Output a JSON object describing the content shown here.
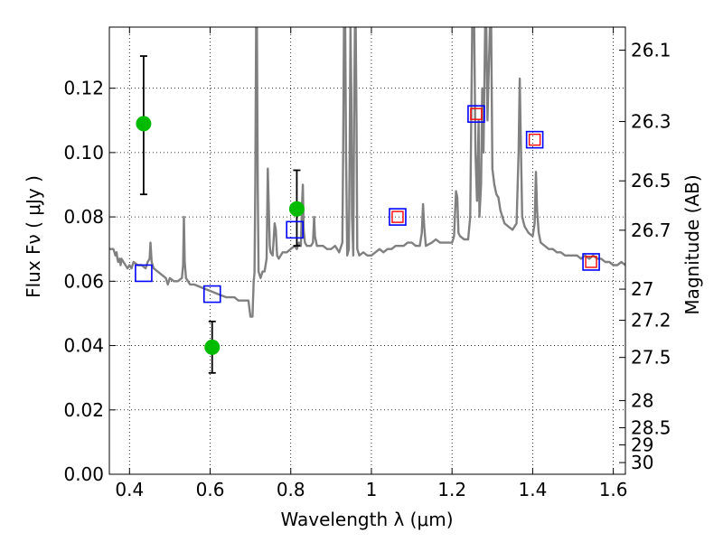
{
  "chart_data": {
    "type": "scatter",
    "xlabel": "Wavelength  λ (μm)",
    "ylabel": "Flux  Fν ( μJy )",
    "ylabel_right": "Magnitude (AB)",
    "xlim": [
      0.35,
      1.63
    ],
    "ylim": [
      0.0,
      0.139
    ],
    "grid": true,
    "x_ticks": [
      0.4,
      0.6,
      0.8,
      1.0,
      1.2,
      1.4,
      1.6
    ],
    "x_tick_labels": [
      "0.4",
      "0.6",
      "0.8",
      "1",
      "1.2",
      "1.4",
      "1.6"
    ],
    "y_ticks": [
      0.0,
      0.02,
      0.04,
      0.06,
      0.08,
      0.1,
      0.12
    ],
    "y_tick_labels": [
      "0.00",
      "0.02",
      "0.04",
      "0.06",
      "0.08",
      "0.10",
      "0.12"
    ],
    "right_ticks": [
      {
        "label": "26.1",
        "value": 26.1
      },
      {
        "label": "26.3",
        "value": 26.3
      },
      {
        "label": "26.5",
        "value": 26.5
      },
      {
        "label": "26.7",
        "value": 26.7
      },
      {
        "label": "27",
        "value": 27.0
      },
      {
        "label": "27.2",
        "value": 27.2
      },
      {
        "label": "27.5",
        "value": 27.5
      },
      {
        "label": "28",
        "value": 28.0
      },
      {
        "label": "28.5",
        "value": 28.5
      },
      {
        "label": "29",
        "value": 29.0
      },
      {
        "label": "30",
        "value": 30.0
      }
    ],
    "series": [
      {
        "kind": "spectrum",
        "color": "#808080",
        "points": [
          [
            0.35,
            0.07
          ],
          [
            0.36,
            0.07
          ],
          [
            0.365,
            0.068
          ],
          [
            0.368,
            0.069
          ],
          [
            0.37,
            0.067
          ],
          [
            0.372,
            0.066
          ],
          [
            0.375,
            0.067
          ],
          [
            0.378,
            0.065
          ],
          [
            0.38,
            0.067
          ],
          [
            0.385,
            0.066
          ],
          [
            0.39,
            0.065
          ],
          [
            0.395,
            0.064
          ],
          [
            0.4,
            0.065
          ],
          [
            0.405,
            0.064
          ],
          [
            0.41,
            0.066
          ],
          [
            0.42,
            0.065
          ],
          [
            0.43,
            0.065
          ],
          [
            0.44,
            0.064
          ],
          [
            0.445,
            0.066
          ],
          [
            0.45,
            0.067
          ],
          [
            0.452,
            0.072
          ],
          [
            0.455,
            0.066
          ],
          [
            0.46,
            0.064
          ],
          [
            0.47,
            0.063
          ],
          [
            0.48,
            0.062
          ],
          [
            0.49,
            0.061
          ],
          [
            0.495,
            0.059
          ],
          [
            0.5,
            0.061
          ],
          [
            0.51,
            0.06
          ],
          [
            0.52,
            0.06
          ],
          [
            0.53,
            0.061
          ],
          [
            0.533,
            0.065
          ],
          [
            0.535,
            0.08
          ],
          [
            0.537,
            0.066
          ],
          [
            0.54,
            0.061
          ],
          [
            0.55,
            0.059
          ],
          [
            0.56,
            0.059
          ],
          [
            0.58,
            0.058
          ],
          [
            0.6,
            0.057
          ],
          [
            0.62,
            0.056
          ],
          [
            0.64,
            0.055
          ],
          [
            0.66,
            0.055
          ],
          [
            0.67,
            0.054
          ],
          [
            0.68,
            0.054
          ],
          [
            0.69,
            0.054
          ],
          [
            0.695,
            0.054
          ],
          [
            0.7,
            0.049
          ],
          [
            0.705,
            0.049
          ],
          [
            0.708,
            0.06
          ],
          [
            0.71,
            0.0625
          ],
          [
            0.712,
            0.09
          ],
          [
            0.714,
            0.139
          ],
          [
            0.716,
            0.139
          ],
          [
            0.718,
            0.09
          ],
          [
            0.72,
            0.063
          ],
          [
            0.725,
            0.061
          ],
          [
            0.73,
            0.063
          ],
          [
            0.735,
            0.063
          ],
          [
            0.74,
            0.067
          ],
          [
            0.743,
            0.095
          ],
          [
            0.745,
            0.085
          ],
          [
            0.748,
            0.071
          ],
          [
            0.75,
            0.069
          ],
          [
            0.755,
            0.068
          ],
          [
            0.76,
            0.078
          ],
          [
            0.763,
            0.076
          ],
          [
            0.766,
            0.068
          ],
          [
            0.77,
            0.067
          ],
          [
            0.78,
            0.069
          ],
          [
            0.79,
            0.069
          ],
          [
            0.8,
            0.07
          ],
          [
            0.81,
            0.071
          ],
          [
            0.815,
            0.07
          ],
          [
            0.82,
            0.072
          ],
          [
            0.825,
            0.071
          ],
          [
            0.828,
            0.084
          ],
          [
            0.83,
            0.09
          ],
          [
            0.832,
            0.076
          ],
          [
            0.835,
            0.072
          ],
          [
            0.84,
            0.071
          ],
          [
            0.85,
            0.071
          ],
          [
            0.855,
            0.072
          ],
          [
            0.858,
            0.08
          ],
          [
            0.86,
            0.074
          ],
          [
            0.865,
            0.071
          ],
          [
            0.87,
            0.071
          ],
          [
            0.88,
            0.071
          ],
          [
            0.89,
            0.07
          ],
          [
            0.9,
            0.07
          ],
          [
            0.91,
            0.071
          ],
          [
            0.92,
            0.069
          ],
          [
            0.928,
            0.072
          ],
          [
            0.93,
            0.1
          ],
          [
            0.932,
            0.139
          ],
          [
            0.935,
            0.139
          ],
          [
            0.937,
            0.1
          ],
          [
            0.94,
            0.068
          ],
          [
            0.944,
            0.07
          ],
          [
            0.946,
            0.1
          ],
          [
            0.948,
            0.139
          ],
          [
            0.95,
            0.12
          ],
          [
            0.952,
            0.08
          ],
          [
            0.955,
            0.068
          ],
          [
            0.957,
            0.11
          ],
          [
            0.959,
            0.139
          ],
          [
            0.961,
            0.139
          ],
          [
            0.963,
            0.11
          ],
          [
            0.965,
            0.07
          ],
          [
            0.97,
            0.068
          ],
          [
            0.98,
            0.069
          ],
          [
            0.99,
            0.068
          ],
          [
            1.0,
            0.068
          ],
          [
            1.01,
            0.069
          ],
          [
            1.02,
            0.07
          ],
          [
            1.03,
            0.069
          ],
          [
            1.04,
            0.07
          ],
          [
            1.05,
            0.07
          ],
          [
            1.06,
            0.071
          ],
          [
            1.07,
            0.071
          ],
          [
            1.08,
            0.071
          ],
          [
            1.09,
            0.072
          ],
          [
            1.1,
            0.072
          ],
          [
            1.11,
            0.071
          ],
          [
            1.12,
            0.071
          ],
          [
            1.125,
            0.075
          ],
          [
            1.128,
            0.084
          ],
          [
            1.131,
            0.077
          ],
          [
            1.135,
            0.071
          ],
          [
            1.15,
            0.072
          ],
          [
            1.16,
            0.073
          ],
          [
            1.17,
            0.072
          ],
          [
            1.18,
            0.072
          ],
          [
            1.19,
            0.072
          ],
          [
            1.2,
            0.072
          ],
          [
            1.205,
            0.074
          ],
          [
            1.21,
            0.088
          ],
          [
            1.213,
            0.086
          ],
          [
            1.216,
            0.075
          ],
          [
            1.22,
            0.074
          ],
          [
            1.23,
            0.073
          ],
          [
            1.24,
            0.073
          ],
          [
            1.245,
            0.08
          ],
          [
            1.25,
            0.139
          ],
          [
            1.255,
            0.139
          ],
          [
            1.258,
            0.1
          ],
          [
            1.262,
            0.085
          ],
          [
            1.266,
            0.11
          ],
          [
            1.268,
            0.08
          ],
          [
            1.272,
            0.09
          ],
          [
            1.275,
            0.12
          ],
          [
            1.278,
            0.1
          ],
          [
            1.282,
            0.139
          ],
          [
            1.285,
            0.139
          ],
          [
            1.288,
            0.11
          ],
          [
            1.29,
            0.12
          ],
          [
            1.294,
            0.139
          ],
          [
            1.297,
            0.139
          ],
          [
            1.3,
            0.095
          ],
          [
            1.305,
            0.09
          ],
          [
            1.31,
            0.087
          ],
          [
            1.315,
            0.086
          ],
          [
            1.32,
            0.082
          ],
          [
            1.33,
            0.078
          ],
          [
            1.34,
            0.077
          ],
          [
            1.35,
            0.076
          ],
          [
            1.36,
            0.078
          ],
          [
            1.365,
            0.1
          ],
          [
            1.368,
            0.123
          ],
          [
            1.371,
            0.1
          ],
          [
            1.374,
            0.08
          ],
          [
            1.38,
            0.077
          ],
          [
            1.39,
            0.075
          ],
          [
            1.4,
            0.074
          ],
          [
            1.405,
            0.078
          ],
          [
            1.408,
            0.094
          ],
          [
            1.411,
            0.082
          ],
          [
            1.415,
            0.075
          ],
          [
            1.42,
            0.072
          ],
          [
            1.43,
            0.071
          ],
          [
            1.44,
            0.07
          ],
          [
            1.45,
            0.07
          ],
          [
            1.46,
            0.069
          ],
          [
            1.47,
            0.069
          ],
          [
            1.48,
            0.068
          ],
          [
            1.49,
            0.068
          ],
          [
            1.5,
            0.068
          ],
          [
            1.51,
            0.068
          ],
          [
            1.52,
            0.067
          ],
          [
            1.53,
            0.068
          ],
          [
            1.54,
            0.067
          ],
          [
            1.55,
            0.068
          ],
          [
            1.56,
            0.067
          ],
          [
            1.57,
            0.067
          ],
          [
            1.58,
            0.066
          ],
          [
            1.59,
            0.066
          ],
          [
            1.6,
            0.065
          ],
          [
            1.61,
            0.065
          ],
          [
            1.62,
            0.066
          ],
          [
            1.63,
            0.065
          ]
        ]
      },
      {
        "kind": "observed",
        "color": "#00bb00",
        "x": [
          0.435,
          0.605,
          0.815
        ],
        "y": [
          0.109,
          0.0395,
          0.0825
        ],
        "yerr_low": [
          0.087,
          0.0315,
          0.071
        ],
        "yerr_high": [
          0.13,
          0.0475,
          0.0945
        ]
      },
      {
        "kind": "model_blue_squares",
        "color": "#0000ff",
        "x": [
          0.435,
          0.605,
          0.81,
          1.065,
          1.26,
          1.405,
          1.545
        ],
        "y": [
          0.0625,
          0.056,
          0.076,
          0.08,
          0.112,
          0.104,
          0.066
        ]
      },
      {
        "kind": "model_red_squares",
        "color": "#ff0000",
        "x": [
          1.065,
          1.26,
          1.405,
          1.545
        ],
        "y": [
          0.08,
          0.112,
          0.104,
          0.066
        ]
      }
    ]
  }
}
